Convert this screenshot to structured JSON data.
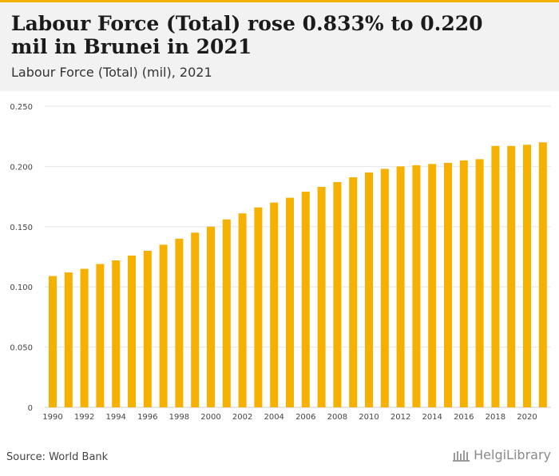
{
  "header": {
    "title": "Labour Force (Total) rose 0.833% to 0.220 mil in Brunei in 2021",
    "subtitle": "Labour Force (Total) (mil), 2021"
  },
  "footer": {
    "source": "Source: World Bank",
    "logo_text": "HelgiLibrary"
  },
  "colors": {
    "bar": "#f5b000",
    "accent": "#f5b000",
    "grid": "#e6e6e6"
  },
  "chart_data": {
    "type": "bar",
    "title": "",
    "xlabel": "",
    "ylabel": "",
    "ylim": [
      0,
      0.25
    ],
    "yticks": [
      "0",
      "0.050",
      "0.100",
      "0.150",
      "0.200",
      "0.250"
    ],
    "grid": true,
    "categories": [
      "1990",
      "1991",
      "1992",
      "1993",
      "1994",
      "1995",
      "1996",
      "1997",
      "1998",
      "1999",
      "2000",
      "2001",
      "2002",
      "2003",
      "2004",
      "2005",
      "2006",
      "2007",
      "2008",
      "2009",
      "2010",
      "2011",
      "2012",
      "2013",
      "2014",
      "2015",
      "2016",
      "2017",
      "2018",
      "2019",
      "2020",
      "2021"
    ],
    "xtick_labels": [
      "1990",
      "1992",
      "1994",
      "1996",
      "1998",
      "2000",
      "2002",
      "2004",
      "2006",
      "2008",
      "2010",
      "2012",
      "2014",
      "2016",
      "2018",
      "2020"
    ],
    "values": [
      0.109,
      0.112,
      0.115,
      0.119,
      0.122,
      0.126,
      0.13,
      0.135,
      0.14,
      0.145,
      0.15,
      0.156,
      0.161,
      0.166,
      0.17,
      0.174,
      0.179,
      0.183,
      0.187,
      0.191,
      0.195,
      0.198,
      0.2,
      0.201,
      0.202,
      0.203,
      0.205,
      0.206,
      0.217,
      0.217,
      0.218,
      0.22
    ]
  }
}
